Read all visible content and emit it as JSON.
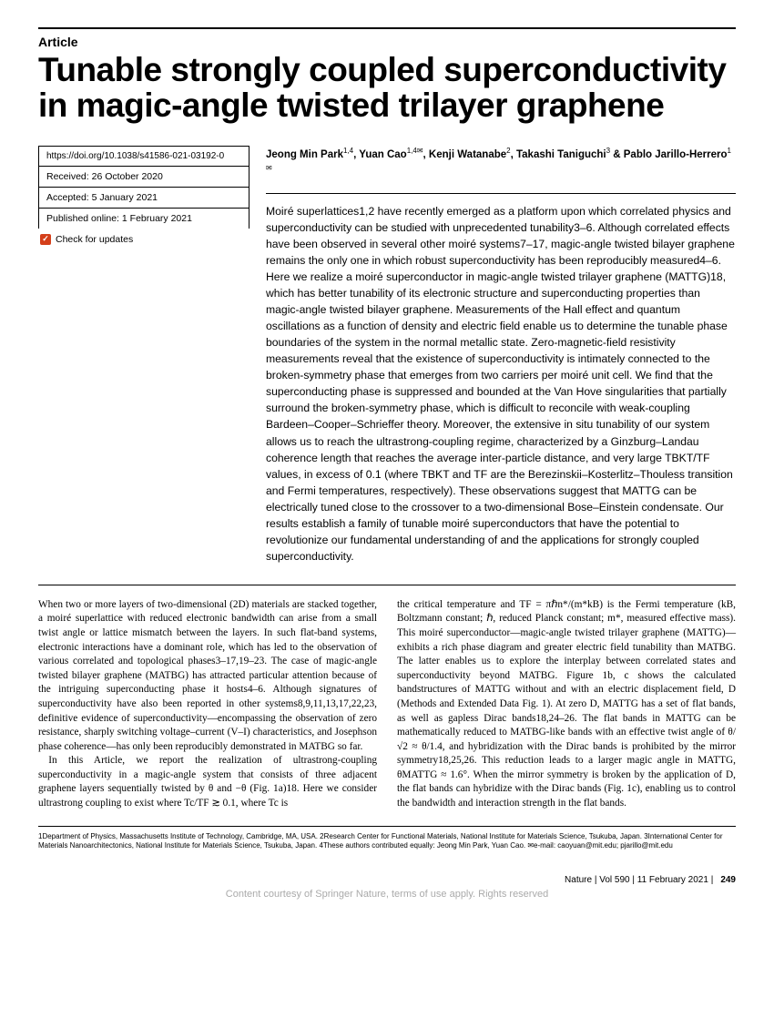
{
  "header": {
    "article_label": "Article",
    "title": "Tunable strongly coupled superconductivity in magic-angle twisted trilayer graphene"
  },
  "meta": {
    "doi": "https://doi.org/10.1038/s41586-021-03192-0",
    "received": "Received: 26 October 2020",
    "accepted": "Accepted: 5 January 2021",
    "published": "Published online: 1 February 2021",
    "check_updates": "Check for updates"
  },
  "authors_html": "Jeong Min Park<sup>1,4</sup>, Yuan Cao<sup>1,4✉</sup>, Kenji Watanabe<sup>2</sup>, Takashi Taniguchi<sup>3</sup> & Pablo Jarillo-Herrero<sup>1✉</sup>",
  "abstract": "Moiré superlattices1,2 have recently emerged as a platform upon which correlated physics and superconductivity can be studied with unprecedented tunability3–6. Although correlated effects have been observed in several other moiré systems7–17, magic-angle twisted bilayer graphene remains the only one in which robust superconductivity has been reproducibly measured4–6. Here we realize a moiré superconductor in magic-angle twisted trilayer graphene (MATTG)18, which has better tunability of its electronic structure and superconducting properties than magic-angle twisted bilayer graphene. Measurements of the Hall effect and quantum oscillations as a function of density and electric field enable us to determine the tunable phase boundaries of the system in the normal metallic state. Zero-magnetic-field resistivity measurements reveal that the existence of superconductivity is intimately connected to the broken-symmetry phase that emerges from two carriers per moiré unit cell. We find that the superconducting phase is suppressed and bounded at the Van Hove singularities that partially surround the broken-symmetry phase, which is difficult to reconcile with weak-coupling Bardeen–Cooper–Schrieffer theory. Moreover, the extensive in situ tunability of our system allows us to reach the ultrastrong-coupling regime, characterized by a Ginzburg–Landau coherence length that reaches the average inter-particle distance, and very large TBKT/TF values, in excess of 0.1 (where TBKT and TF are the Berezinskii–Kosterlitz–Thouless transition and Fermi temperatures, respectively). These observations suggest that MATTG can be electrically tuned close to the crossover to a two-dimensional Bose–Einstein condensate. Our results establish a family of tunable moiré superconductors that have the potential to revolutionize our fundamental understanding of and the applications for strongly coupled superconductivity.",
  "body": {
    "col1_p1": "When two or more layers of two-dimensional (2D) materials are stacked together, a moiré superlattice with reduced electronic bandwidth can arise from a small twist angle or lattice mismatch between the layers. In such flat-band systems, electronic interactions have a dominant role, which has led to the observation of various correlated and topological phases3–17,19–23. The case of magic-angle twisted bilayer graphene (MATBG) has attracted particular attention because of the intriguing superconducting phase it hosts4–6. Although signatures of superconductivity have also been reported in other systems8,9,11,13,17,22,23, definitive evidence of superconductivity—encompassing the observation of zero resistance, sharply switching voltage–current (V–I) characteristics, and Josephson phase coherence—has only been reproducibly demonstrated in MATBG so far.",
    "col1_p2": "In this Article, we report the realization of ultrastrong-coupling superconductivity in a magic-angle system that consists of three adjacent graphene layers sequentially twisted by θ and −θ (Fig. 1a)18. Here we consider ultrastrong coupling to exist where Tc/TF ≳ 0.1, where Tc is",
    "col2_p1": "the critical temperature and TF = πℏn*/(m*kB) is the Fermi temperature (kB, Boltzmann constant; ℏ, reduced Planck constant; m*, measured effective mass). This moiré superconductor—magic-angle twisted trilayer graphene (MATTG)—exhibits a rich phase diagram and greater electric field tunability than MATBG. The latter enables us to explore the interplay between correlated states and superconductivity beyond MATBG. Figure 1b, c shows the calculated bandstructures of MATTG without and with an electric displacement field, D (Methods and Extended Data Fig. 1). At zero D, MATTG has a set of flat bands, as well as gapless Dirac bands18,24–26. The flat bands in MATTG can be mathematically reduced to MATBG-like bands with an effective twist angle of θ/√2 ≈ θ/1.4, and hybridization with the Dirac bands is prohibited by the mirror symmetry18,25,26. This reduction leads to a larger magic angle in MATTG, θMATTG ≈ 1.6°. When the mirror symmetry is broken by the application of D, the flat bands can hybridize with the Dirac bands (Fig. 1c), enabling us to control the bandwidth and interaction strength in the flat bands."
  },
  "affiliations": "1Department of Physics, Massachusetts Institute of Technology, Cambridge, MA, USA. 2Research Center for Functional Materials, National Institute for Materials Science, Tsukuba, Japan. 3International Center for Materials Nanoarchitectonics, National Institute for Materials Science, Tsukuba, Japan. 4These authors contributed equally: Jeong Min Park, Yuan Cao. ✉e-mail: caoyuan@mit.edu; pjarillo@mit.edu",
  "footer": {
    "journal": "Nature | Vol 590 | 11 February 2021 |",
    "page": "249",
    "watermark": "Content courtesy of Springer Nature, terms of use apply. Rights reserved"
  }
}
